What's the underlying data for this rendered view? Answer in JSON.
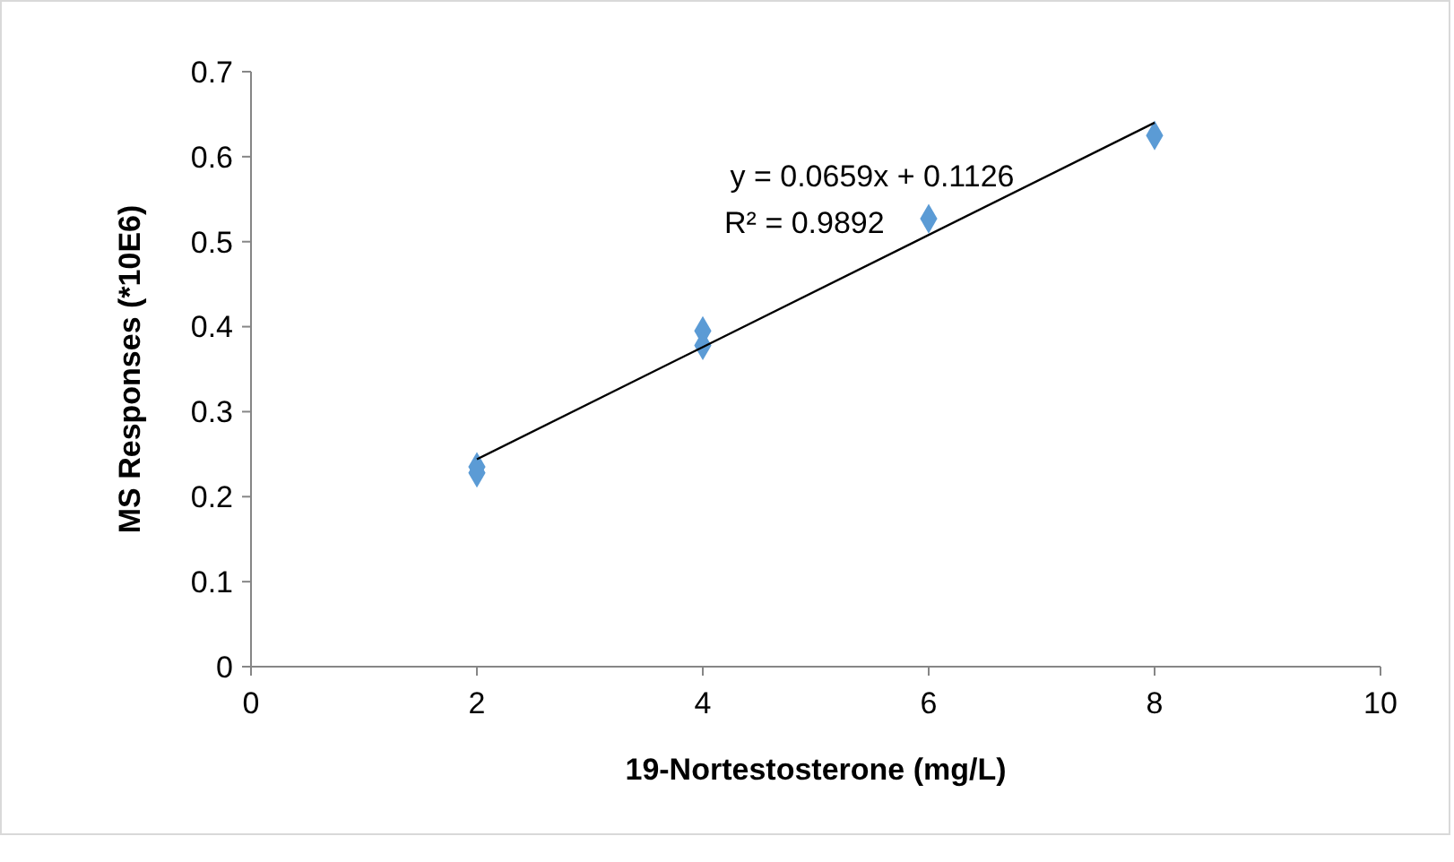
{
  "chart_data": {
    "type": "scatter",
    "xlabel": "19-Nortestosterone (mg/L)",
    "ylabel": "MS Responses (*10E6)",
    "xlim": [
      0,
      10
    ],
    "xticks": [
      0,
      2,
      4,
      6,
      8,
      10
    ],
    "ylim": [
      0,
      0.7
    ],
    "yticks": [
      0,
      0.1,
      0.2,
      0.3,
      0.4,
      0.5,
      0.6,
      0.7
    ],
    "grid": false,
    "series": [
      {
        "color": "#5b9bd5",
        "marker": "diamond",
        "x": [
          2,
          2,
          4,
          4,
          6,
          8
        ],
        "values": [
          0.235,
          0.228,
          0.395,
          0.378,
          0.527,
          0.625
        ]
      },
      {
        "type": "line",
        "color": "#000000",
        "marker": "none",
        "line_style": "solid",
        "x": [
          2,
          8
        ],
        "values": [
          0.244,
          0.64
        ]
      }
    ],
    "annotations": [
      "y = 0.0659x + 0.1126",
      "R² = 0.9892"
    ]
  }
}
